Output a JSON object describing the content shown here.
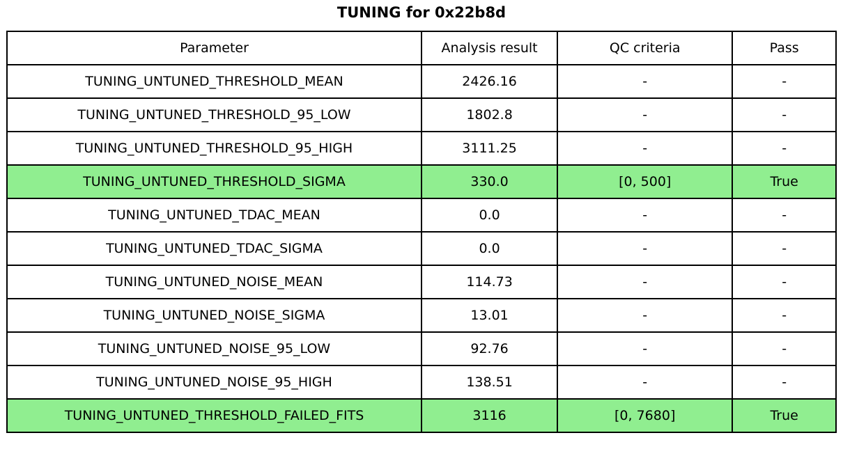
{
  "title": "TUNING for 0x22b8d",
  "colors": {
    "highlight_green": "#90EE90",
    "border": "#000000",
    "background": "#ffffff",
    "text": "#000000"
  },
  "chart_data": {
    "type": "table",
    "title": "TUNING for 0x22b8d",
    "columns": [
      "Parameter",
      "Analysis result",
      "QC criteria",
      "Pass"
    ],
    "rows": [
      [
        "TUNING_UNTUNED_THRESHOLD_MEAN",
        "2426.16",
        "-",
        "-"
      ],
      [
        "TUNING_UNTUNED_THRESHOLD_95_LOW",
        "1802.8",
        "-",
        "-"
      ],
      [
        "TUNING_UNTUNED_THRESHOLD_95_HIGH",
        "3111.25",
        "-",
        "-"
      ],
      [
        "TUNING_UNTUNED_THRESHOLD_SIGMA",
        "330.0",
        "[0, 500]",
        "True"
      ],
      [
        "TUNING_UNTUNED_TDAC_MEAN",
        "0.0",
        "-",
        "-"
      ],
      [
        "TUNING_UNTUNED_TDAC_SIGMA",
        "0.0",
        "-",
        "-"
      ],
      [
        "TUNING_UNTUNED_NOISE_MEAN",
        "114.73",
        "-",
        "-"
      ],
      [
        "TUNING_UNTUNED_NOISE_SIGMA",
        "13.01",
        "-",
        "-"
      ],
      [
        "TUNING_UNTUNED_NOISE_95_LOW",
        "92.76",
        "-",
        "-"
      ],
      [
        "TUNING_UNTUNED_NOISE_95_HIGH",
        "138.51",
        "-",
        "-"
      ],
      [
        "TUNING_UNTUNED_THRESHOLD_FAILED_FITS",
        "3116",
        "[0, 7680]",
        "True"
      ]
    ],
    "highlighted_rows": [
      3,
      10
    ],
    "highlight_color": "#90EE90",
    "legend_position": "none",
    "grid": true
  }
}
